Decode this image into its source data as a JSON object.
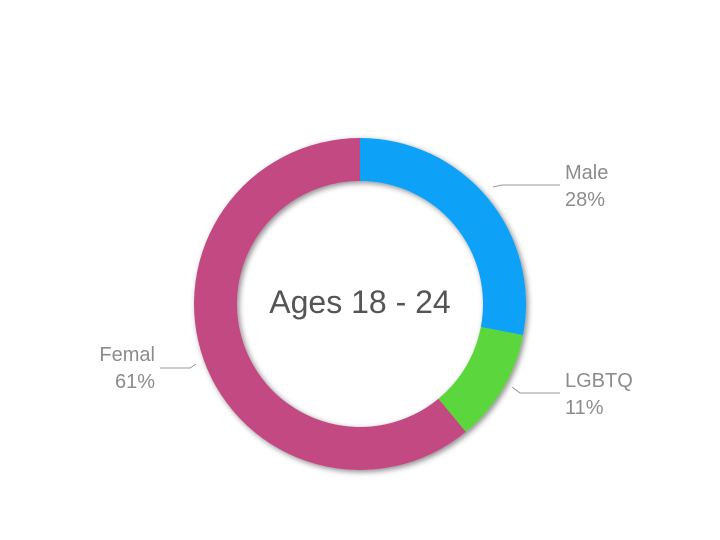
{
  "chart_data": {
    "type": "pie",
    "donut": true,
    "center_label": "Ages 18 - 24",
    "slices": [
      {
        "label": "Male",
        "value": 28,
        "value_label": "28%",
        "color": "#0ba1f8"
      },
      {
        "label": "LGBTQ",
        "value": 11,
        "value_label": "11%",
        "color": "#5cd63c"
      },
      {
        "label": "Femal",
        "value": 61,
        "value_label": "61%",
        "color": "#c24a82"
      }
    ]
  }
}
